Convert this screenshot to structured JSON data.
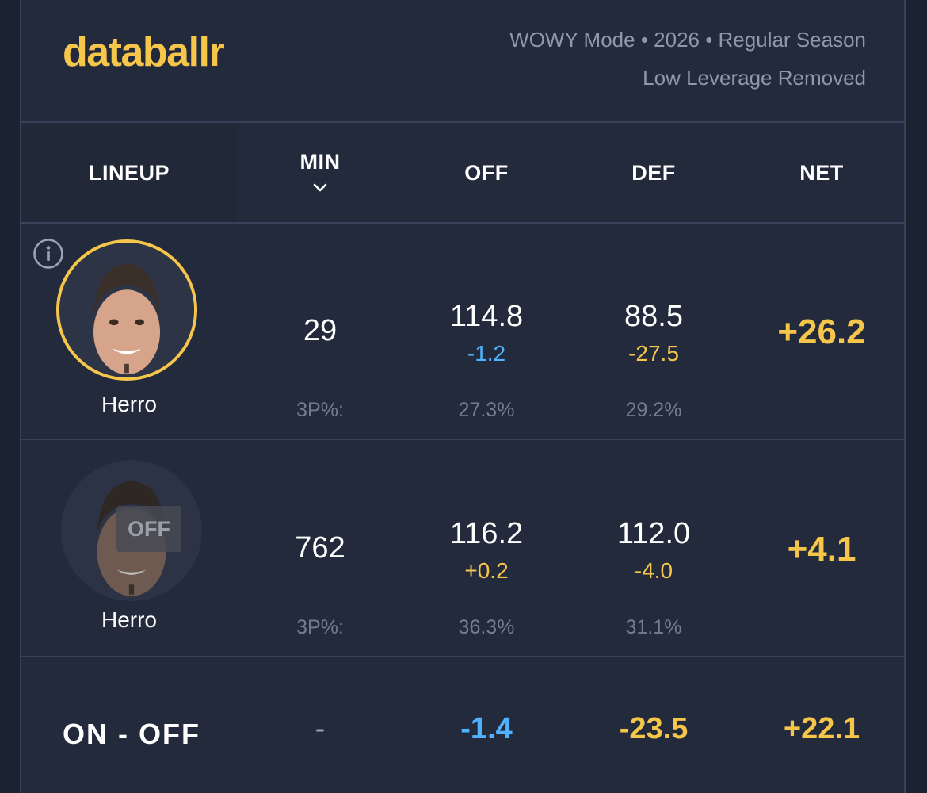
{
  "brand": {
    "logo": "databallr",
    "accent": "#f6c64a"
  },
  "meta": {
    "line1": "WOWY Mode • 2026 • Regular Season",
    "line2": "Low Leverage Removed"
  },
  "columns": {
    "lineup": "LINEUP",
    "min": "MIN",
    "off": "OFF",
    "def": "DEF",
    "net": "NET"
  },
  "rows": [
    {
      "player": "Herro",
      "state": "on",
      "min": "29",
      "off": "114.8",
      "off_delta": "-1.2",
      "def": "88.5",
      "def_delta": "-27.5",
      "net": "+26.2",
      "tp_label": "3P%:",
      "off_3p": "27.3%",
      "def_3p": "29.2%"
    },
    {
      "player": "Herro",
      "state": "off",
      "off_badge": "OFF",
      "min": "762",
      "off": "116.2",
      "off_delta": "+0.2",
      "def": "112.0",
      "def_delta": "-4.0",
      "net": "+4.1",
      "tp_label": "3P%:",
      "off_3p": "36.3%",
      "def_3p": "31.1%"
    }
  ],
  "summary": {
    "label": "ON - OFF",
    "min": "-",
    "off": "-1.4",
    "def": "-23.5",
    "net": "+22.1"
  },
  "colors": {
    "positive": "#f6c64a",
    "negative": "#4fb3ff",
    "background": "#222a3b"
  }
}
